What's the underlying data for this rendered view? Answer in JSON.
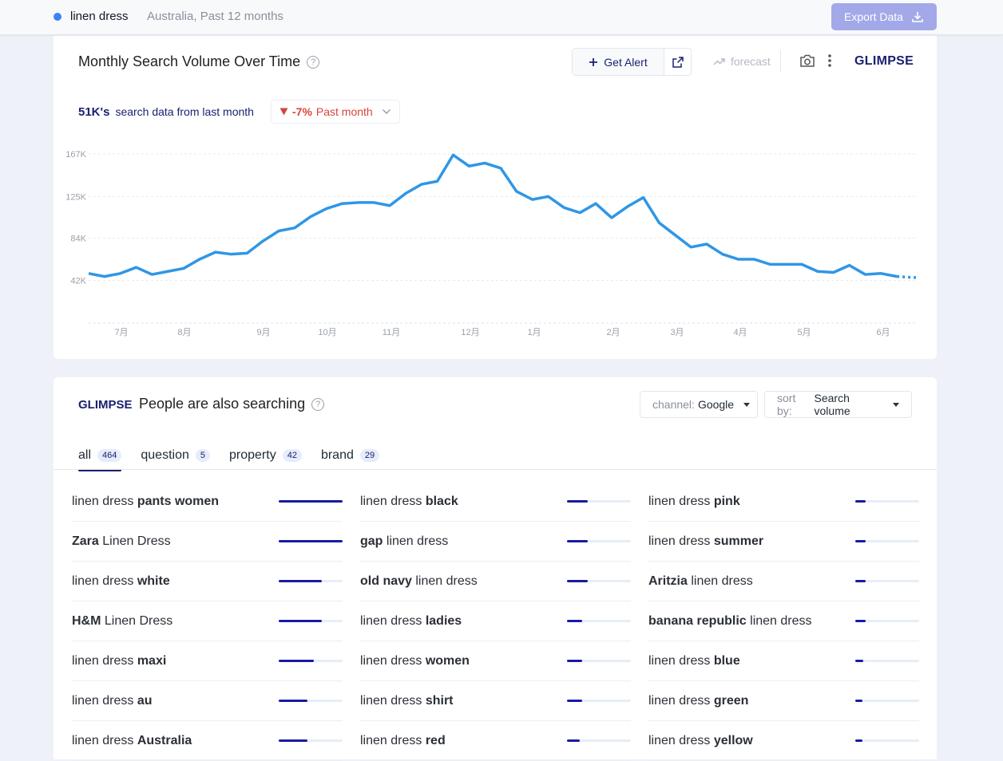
{
  "topbar": {
    "keyword": "linen dress",
    "context": "Australia, Past 12 months",
    "export_label": "Export Data"
  },
  "card1": {
    "title": "Monthly Search Volume Over Time",
    "get_alert": "Get Alert",
    "forecast": "forecast",
    "logo": "GLIMPSE",
    "stat_value": "51K's",
    "stat_text": "search data from last month",
    "change_value": "-7%",
    "change_period": "Past month"
  },
  "chart_data": {
    "type": "line",
    "y_ticks": [
      "167K",
      "125K",
      "84K",
      "42K"
    ],
    "x_ticks": [
      "7月",
      "8月",
      "9月",
      "10月",
      "11月",
      "12月",
      "1月",
      "2月",
      "3月",
      "4月",
      "5月",
      "6月"
    ],
    "ylim": [
      0,
      167000
    ],
    "grid": true,
    "color": "#2f96e6",
    "series": [
      {
        "values": [
          49000,
          46000,
          49000,
          55000,
          48000,
          51000,
          54000,
          63000,
          70000,
          68000,
          69000,
          81000,
          91000,
          94000,
          105000,
          113000,
          118000,
          119000,
          119000,
          116000,
          128000,
          137000,
          140000,
          166000,
          155000,
          158000,
          153000,
          130000,
          122000,
          125000,
          114000,
          109000,
          118000,
          104000,
          115000,
          124000,
          99000,
          87000,
          75000,
          78000,
          68000,
          63000,
          63000,
          58000,
          58000,
          58000,
          51000,
          50000,
          57000,
          48000,
          49000,
          46000,
          45000
        ]
      }
    ]
  },
  "card2": {
    "logo": "GLIMPSE",
    "title": "People are also searching",
    "channel_label": "channel:",
    "channel_value": "Google",
    "sort_label": "sort by:",
    "sort_value": "Search volume",
    "tabs": [
      {
        "label": "all",
        "count": "464"
      },
      {
        "label": "question",
        "count": "5"
      },
      {
        "label": "property",
        "count": "42"
      },
      {
        "label": "brand",
        "count": "29"
      }
    ],
    "columns": [
      [
        {
          "pre": "linen dress ",
          "bold": "pants women",
          "post": "",
          "level": 1.0
        },
        {
          "pre": "",
          "bold": "Zara",
          "post": " Linen Dress",
          "level": 1.0
        },
        {
          "pre": "linen dress ",
          "bold": "white",
          "post": "",
          "level": 0.68
        },
        {
          "pre": "",
          "bold": "H&M",
          "post": " Linen Dress",
          "level": 0.68
        },
        {
          "pre": "linen dress ",
          "bold": "maxi",
          "post": "",
          "level": 0.55
        },
        {
          "pre": "linen dress ",
          "bold": "au",
          "post": "",
          "level": 0.45
        },
        {
          "pre": "linen dress ",
          "bold": "Australia",
          "post": "",
          "level": 0.45
        }
      ],
      [
        {
          "pre": "linen dress ",
          "bold": "black",
          "post": "",
          "level": 0.32
        },
        {
          "pre": "",
          "bold": "gap",
          "post": " linen dress",
          "level": 0.32
        },
        {
          "pre": "",
          "bold": "old navy",
          "post": " linen dress",
          "level": 0.32
        },
        {
          "pre": "linen dress ",
          "bold": "ladies",
          "post": "",
          "level": 0.24
        },
        {
          "pre": "linen dress ",
          "bold": "women",
          "post": "",
          "level": 0.24
        },
        {
          "pre": "linen dress ",
          "bold": "shirt",
          "post": "",
          "level": 0.24
        },
        {
          "pre": "linen dress ",
          "bold": "red",
          "post": "",
          "level": 0.2
        }
      ],
      [
        {
          "pre": "linen dress ",
          "bold": "pink",
          "post": "",
          "level": 0.16
        },
        {
          "pre": "linen dress ",
          "bold": "summer",
          "post": "",
          "level": 0.16
        },
        {
          "pre": "",
          "bold": "Aritzia",
          "post": " linen dress",
          "level": 0.16
        },
        {
          "pre": "",
          "bold": "banana republic",
          "post": " linen dress",
          "level": 0.16
        },
        {
          "pre": "linen dress ",
          "bold": "blue",
          "post": "",
          "level": 0.13
        },
        {
          "pre": "linen dress ",
          "bold": "green",
          "post": "",
          "level": 0.11
        },
        {
          "pre": "linen dress ",
          "bold": "yellow",
          "post": "",
          "level": 0.11
        }
      ]
    ]
  }
}
